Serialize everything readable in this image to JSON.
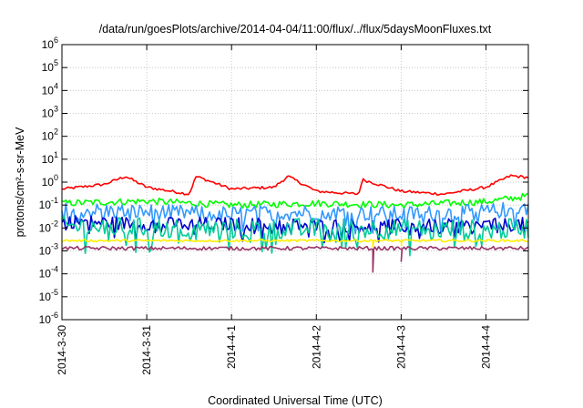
{
  "chart_data": {
    "type": "line",
    "title": "/data/run/goesPlots/archive/2014-04-04/11:00/flux/../flux/5daysMoonFluxes.txt",
    "xlabel": "Coordinated Universal Time (UTC)",
    "ylabel": "protons/cm²-s-sr-MeV",
    "y_scale": "log",
    "ylim_exponents": [
      -6,
      6
    ],
    "y_ticks": [
      {
        "mantissa": "10",
        "exponent": "-6"
      },
      {
        "mantissa": "10",
        "exponent": "-5"
      },
      {
        "mantissa": "10",
        "exponent": "-4"
      },
      {
        "mantissa": "10",
        "exponent": "-3"
      },
      {
        "mantissa": "10",
        "exponent": "-2"
      },
      {
        "mantissa": "10",
        "exponent": "-1"
      },
      {
        "mantissa": "10",
        "exponent": "0"
      },
      {
        "mantissa": "10",
        "exponent": "1"
      },
      {
        "mantissa": "10",
        "exponent": "2"
      },
      {
        "mantissa": "10",
        "exponent": "3"
      },
      {
        "mantissa": "10",
        "exponent": "4"
      },
      {
        "mantissa": "10",
        "exponent": "5"
      },
      {
        "mantissa": "10",
        "exponent": "6"
      }
    ],
    "xlim": [
      "2014-03-30",
      "2014-04-04T12:00"
    ],
    "x_ticks": [
      "2014-3-30",
      "2014-3-31",
      "2014-4-1",
      "2014-4-2",
      "2014-4-3",
      "2014-4-4"
    ],
    "grid": true,
    "legend": "none",
    "series": [
      {
        "color": "#ff0000",
        "base": 0.55,
        "amp": 0.25,
        "noise": 0.06,
        "dips": [],
        "x": [
          "2014-03-30",
          "2014-03-30T12:00",
          "2014-03-30T18:00",
          "2014-03-31",
          "2014-03-31T12:00",
          "2014-03-31T14:00",
          "2014-04-01",
          "2014-04-01T12:00",
          "2014-04-01T16:00",
          "2014-04-02",
          "2014-04-02T12:00",
          "2014-04-02T13:00",
          "2014-04-03",
          "2014-04-03T12:00",
          "2014-04-04",
          "2014-04-04T07:00",
          "2014-04-04T12:00"
        ],
        "y": [
          0.5,
          0.8,
          1.8,
          0.6,
          0.3,
          1.8,
          0.5,
          0.6,
          1.8,
          0.4,
          0.3,
          1.3,
          0.4,
          0.3,
          0.6,
          1.9,
          1.6
        ]
      },
      {
        "color": "#00ff00",
        "base": 0.12,
        "amp": 0.08,
        "noise": 0.15,
        "dips": [],
        "x": [
          "2014-03-30",
          "2014-03-31",
          "2014-04-01",
          "2014-04-02",
          "2014-04-03",
          "2014-04-04",
          "2014-04-04T12:00"
        ],
        "y": [
          0.12,
          0.15,
          0.1,
          0.12,
          0.1,
          0.14,
          0.25
        ]
      },
      {
        "color": "#3399ff",
        "base": 0.05,
        "amp": 0.03,
        "noise": 0.35,
        "dips": [],
        "x": [
          "2014-03-30",
          "2014-03-31",
          "2014-04-01",
          "2014-04-02",
          "2014-04-03",
          "2014-04-04",
          "2014-04-04T12:00"
        ],
        "y": [
          0.06,
          0.05,
          0.04,
          0.05,
          0.04,
          0.05,
          0.08
        ]
      },
      {
        "color": "#0000cc",
        "base": 0.02,
        "amp": 0.006,
        "noise": 0.3,
        "dips": [],
        "x": [
          "2014-03-30",
          "2014-03-31",
          "2014-04-01",
          "2014-04-02",
          "2014-04-03",
          "2014-04-04",
          "2014-04-04T12:00"
        ],
        "y": [
          0.02,
          0.015,
          0.015,
          0.013,
          0.012,
          0.013,
          0.015
        ]
      },
      {
        "color": "#00cc99",
        "base": 0.012,
        "amp": 0.002,
        "noise": 0.45,
        "dips": [],
        "x": [
          "2014-03-30",
          "2014-03-31",
          "2014-04-01",
          "2014-04-02",
          "2014-04-03",
          "2014-04-04",
          "2014-04-04T12:00"
        ],
        "y": [
          0.012,
          0.01,
          0.009,
          0.01,
          0.009,
          0.008,
          0.01
        ]
      },
      {
        "color": "#ffee00",
        "base": 0.0028,
        "amp": 0.0003,
        "noise": 0.05,
        "dips": [
          [
            "2014-04-02T16:00",
            0.0015
          ],
          [
            "2014-04-03T00:00",
            0.0017
          ]
        ],
        "x": [
          "2014-03-30",
          "2014-04-04T12:00"
        ],
        "y": [
          0.0028,
          0.0028
        ]
      },
      {
        "color": "#993366",
        "base": 0.0013,
        "amp": 0.0002,
        "noise": 0.08,
        "dips": [
          [
            "2014-04-02T16:00",
            0.00012
          ],
          [
            "2014-04-03T00:00",
            0.00035
          ]
        ],
        "x": [
          "2014-03-30",
          "2014-04-04T12:00"
        ],
        "y": [
          0.0013,
          0.0013
        ]
      }
    ]
  }
}
